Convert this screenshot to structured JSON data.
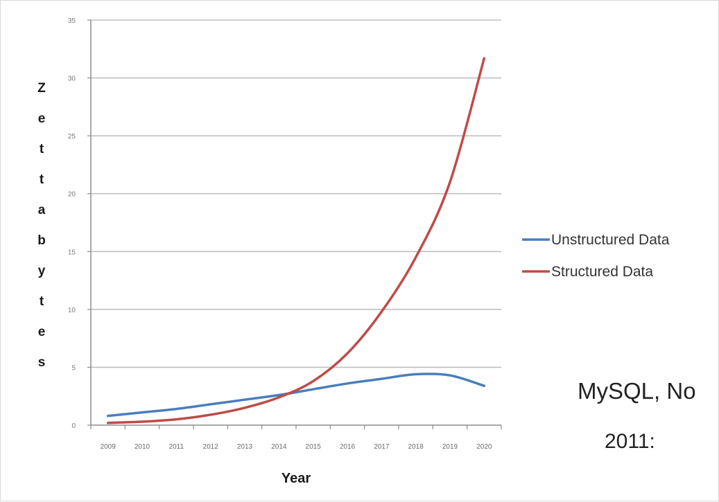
{
  "chart_data": {
    "type": "line",
    "title": "",
    "xlabel": "Year",
    "ylabel": "Zettabytes",
    "x": [
      "2009",
      "2010",
      "2011",
      "2012",
      "2013",
      "2014",
      "2015",
      "2016",
      "2017",
      "2018",
      "2019",
      "2020"
    ],
    "ylim": [
      0,
      35
    ],
    "yticks": [
      0,
      5,
      10,
      15,
      20,
      25,
      30,
      35
    ],
    "grid": true,
    "legend_position": "right",
    "series": [
      {
        "name": "Unstructured Data",
        "color": "#4a7ebb",
        "values": [
          0.8,
          1.1,
          1.4,
          1.8,
          2.2,
          2.6,
          3.1,
          3.6,
          4.0,
          4.4,
          4.3,
          3.4
        ]
      },
      {
        "name": "Structured Data",
        "color": "#be4b48",
        "values": [
          0.2,
          0.3,
          0.5,
          0.9,
          1.5,
          2.4,
          3.8,
          6.2,
          9.8,
          14.5,
          21.0,
          31.7
        ]
      }
    ]
  },
  "slide": {
    "line1": "MySQL, No",
    "line2": "2011:"
  }
}
